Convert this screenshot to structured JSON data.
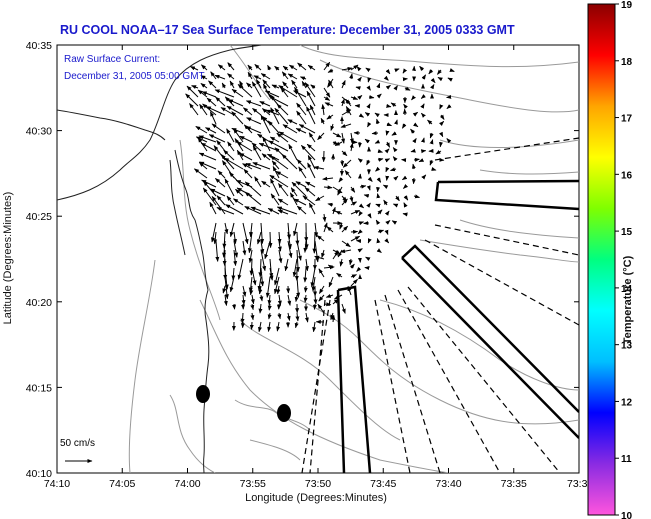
{
  "title": "RU COOL  NOAA–17  Sea Surface Temperature:  December 31, 2005 0333 GMT",
  "legend": {
    "line1": "Raw Surface Current:",
    "line2": "December 31, 2005 05:00 GMT",
    "scale_label": "50 cm/s"
  },
  "axes": {
    "xlabel": "Longitude (Degrees:Minutes)",
    "ylabel": "Latitude (Degrees:Minutes)",
    "xticks": [
      "74:10",
      "74:05",
      "74:00",
      "73:55",
      "73:50",
      "73:45",
      "73:40",
      "73:35",
      "73:3"
    ],
    "yticks": [
      "40:35",
      "40:30",
      "40:25",
      "40:20",
      "40:15",
      "40:10"
    ]
  },
  "colorbar": {
    "label": "Temperature (°C)",
    "ticks": [
      "19",
      "18",
      "17",
      "16",
      "15",
      "14",
      "13",
      "12",
      "11",
      "10"
    ],
    "stops": [
      "#ff55dd",
      "#8a2be2",
      "#0000ff",
      "#00bfff",
      "#00ffff",
      "#00ff80",
      "#7fff00",
      "#ffff00",
      "#ffa500",
      "#ff0000",
      "#8b0000"
    ]
  },
  "colors": {
    "text_blue": "#1a1acc",
    "coast": "#222222",
    "contour": "#9a9a9a"
  }
}
